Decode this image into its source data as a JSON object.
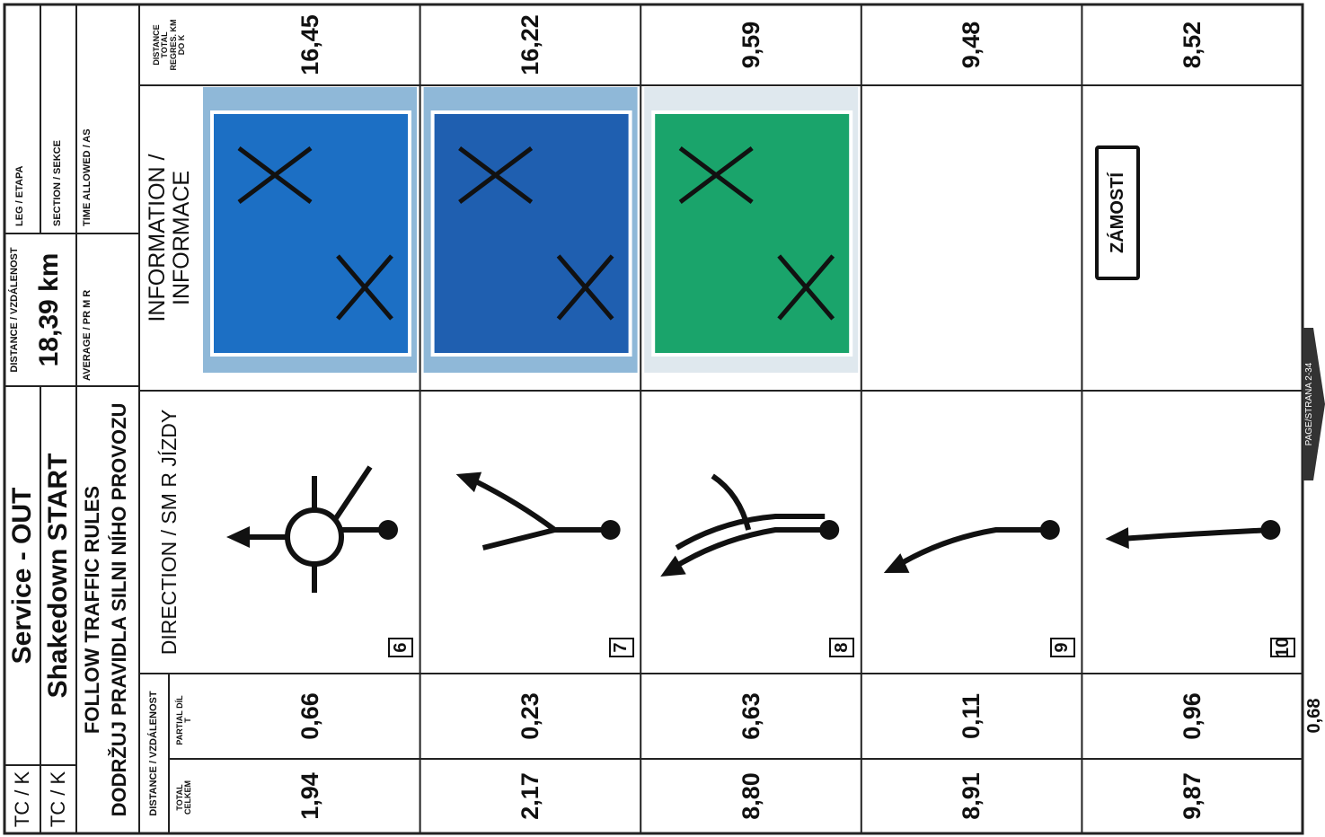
{
  "header": {
    "tc_label_1": "TC / K",
    "tc_name_1": "Service - OUT",
    "tc_label_2": "TC / K",
    "tc_name_2": "Shakedown START",
    "rules_en": "FOLLOW TRAFFIC RULES",
    "rules_cz": "DODRŽUJ PRAVIDLA SILNI NÍHO PROVOZU",
    "distance_label": "DISTANCE / VZDÁLENOST",
    "distance": "18,39 km",
    "average_label": "AVERAGE / PR M R",
    "leg_label": "LEG / ETAPA",
    "section_label": "SECTION / SEKCE",
    "time_label": "TIME ALLOWED / AS"
  },
  "columns": {
    "distance": "DISTANCE / VZDÁLENOST",
    "total": "TOTAL CELKEM",
    "partial": "PARTIAL DÍL T",
    "direction": "DIRECTION / SM R JÍZDY",
    "information": "INFORMATION / INFORMACE",
    "regress": "DISTANCE TOTAL REGRES. KM DO K"
  },
  "rows": [
    {
      "number": "6",
      "total": "1,94",
      "partial": "0,66",
      "regress": "16,45"
    },
    {
      "number": "7",
      "total": "2,17",
      "partial": "0,23",
      "regress": "16,22"
    },
    {
      "number": "8",
      "total": "8,80",
      "partial": "6,63",
      "regress": "9,59"
    },
    {
      "number": "9",
      "total": "8,91",
      "partial": "0,11",
      "regress": "9,48"
    },
    {
      "number": "10",
      "total": "9,87",
      "partial": "0,96",
      "regress": "8,52",
      "info": "ZÁMOSTÍ"
    }
  ],
  "next_partial": "0,68",
  "page": "PAGE/STRANA 2-34"
}
